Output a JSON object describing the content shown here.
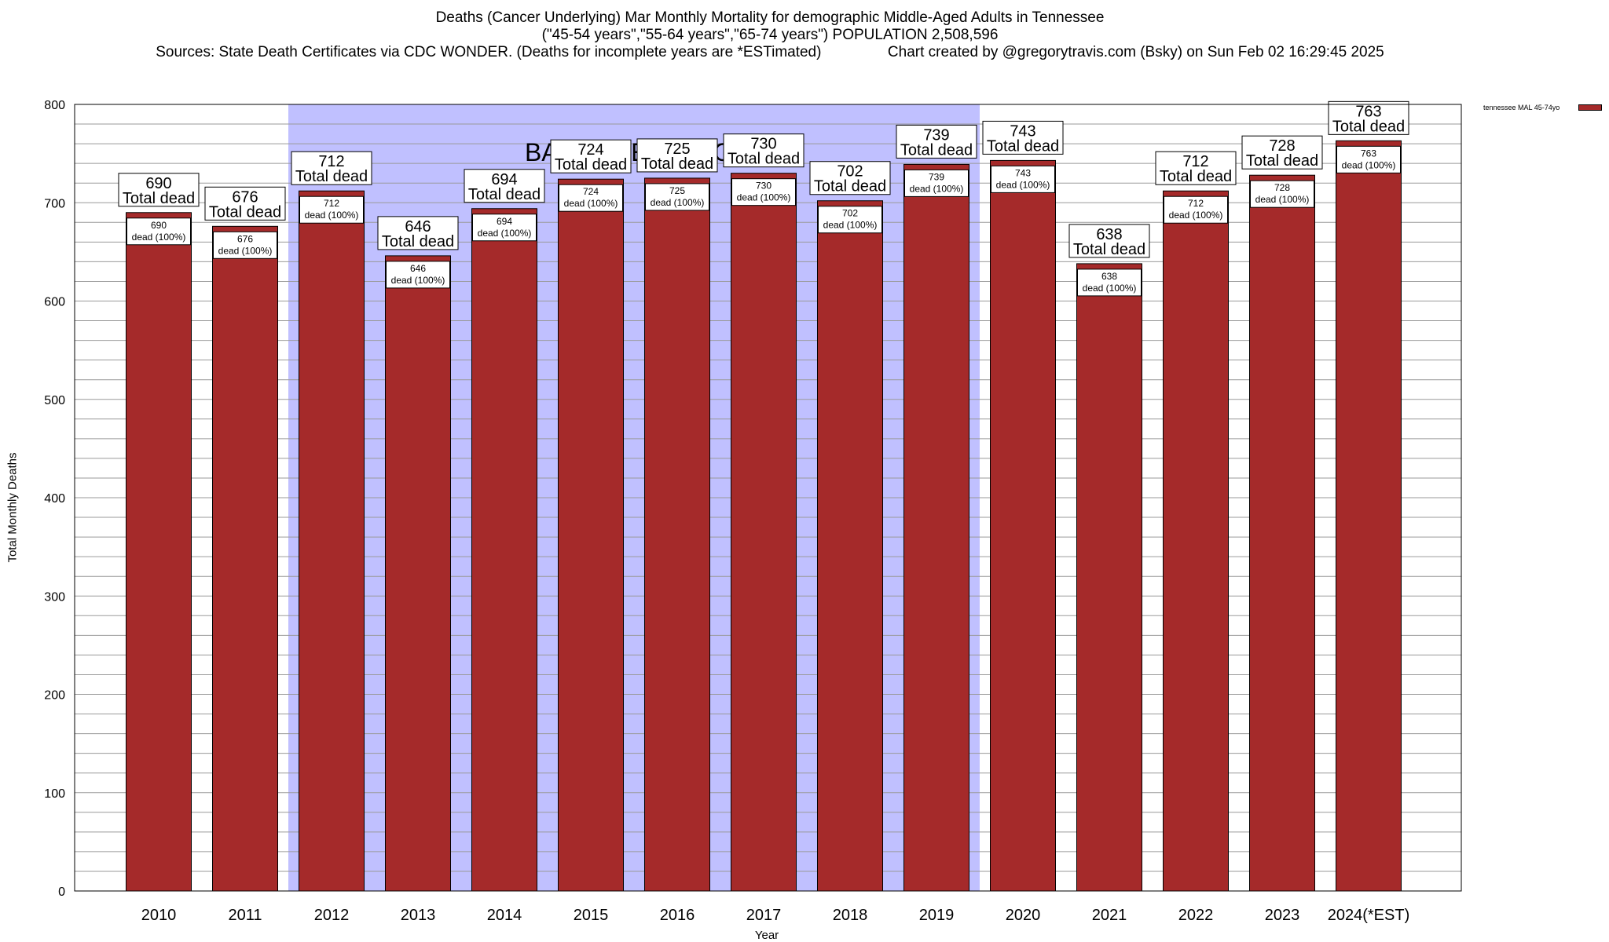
{
  "title_lines": [
    "Deaths (Cancer Underlying) Mar Monthly Mortality for demographic Middle-Aged Adults in Tennessee",
    "(\"45-54 years\",\"55-64 years\",\"65-74 years\") POPULATION 2,508,596",
    "Sources: State Death Certificates via CDC WONDER. (Deaths for incomplete years are *ESTimated)                Chart created by @gregorytravis.com (Bsky) on Sun Feb 02 16:29:45 2025"
  ],
  "legend": {
    "label": "tennessee MAL 45-74yo",
    "color": "#a52a2a",
    "position": "top-right"
  },
  "chart_data": {
    "type": "bar",
    "title": "Deaths (Cancer Underlying) Mar Monthly Mortality for demographic Middle-Aged Adults in Tennessee",
    "xlabel": "Year",
    "ylabel": "Total Monthly Deaths",
    "ylim": [
      0,
      800
    ],
    "yticks": [
      0,
      100,
      200,
      300,
      400,
      500,
      600,
      700,
      800
    ],
    "minor_grid_step": 20,
    "grid": true,
    "categories": [
      "2010",
      "2011",
      "2012",
      "2013",
      "2014",
      "2015",
      "2016",
      "2017",
      "2018",
      "2019",
      "2020",
      "2021",
      "2022",
      "2023",
      "2024(*EST)"
    ],
    "series": [
      {
        "name": "tennessee MAL 45-74yo",
        "values": [
          690,
          676,
          712,
          646,
          694,
          724,
          725,
          730,
          702,
          739,
          743,
          638,
          712,
          728,
          763
        ]
      }
    ],
    "bar_color": "#a52a2a",
    "total_label_suffix": "Total dead",
    "inner_label_suffix": "dead (100%)",
    "baseline_period": {
      "label": "BASELINE PERIOD",
      "start": "2012",
      "end": "2019",
      "color": "#c0c0ff"
    }
  }
}
